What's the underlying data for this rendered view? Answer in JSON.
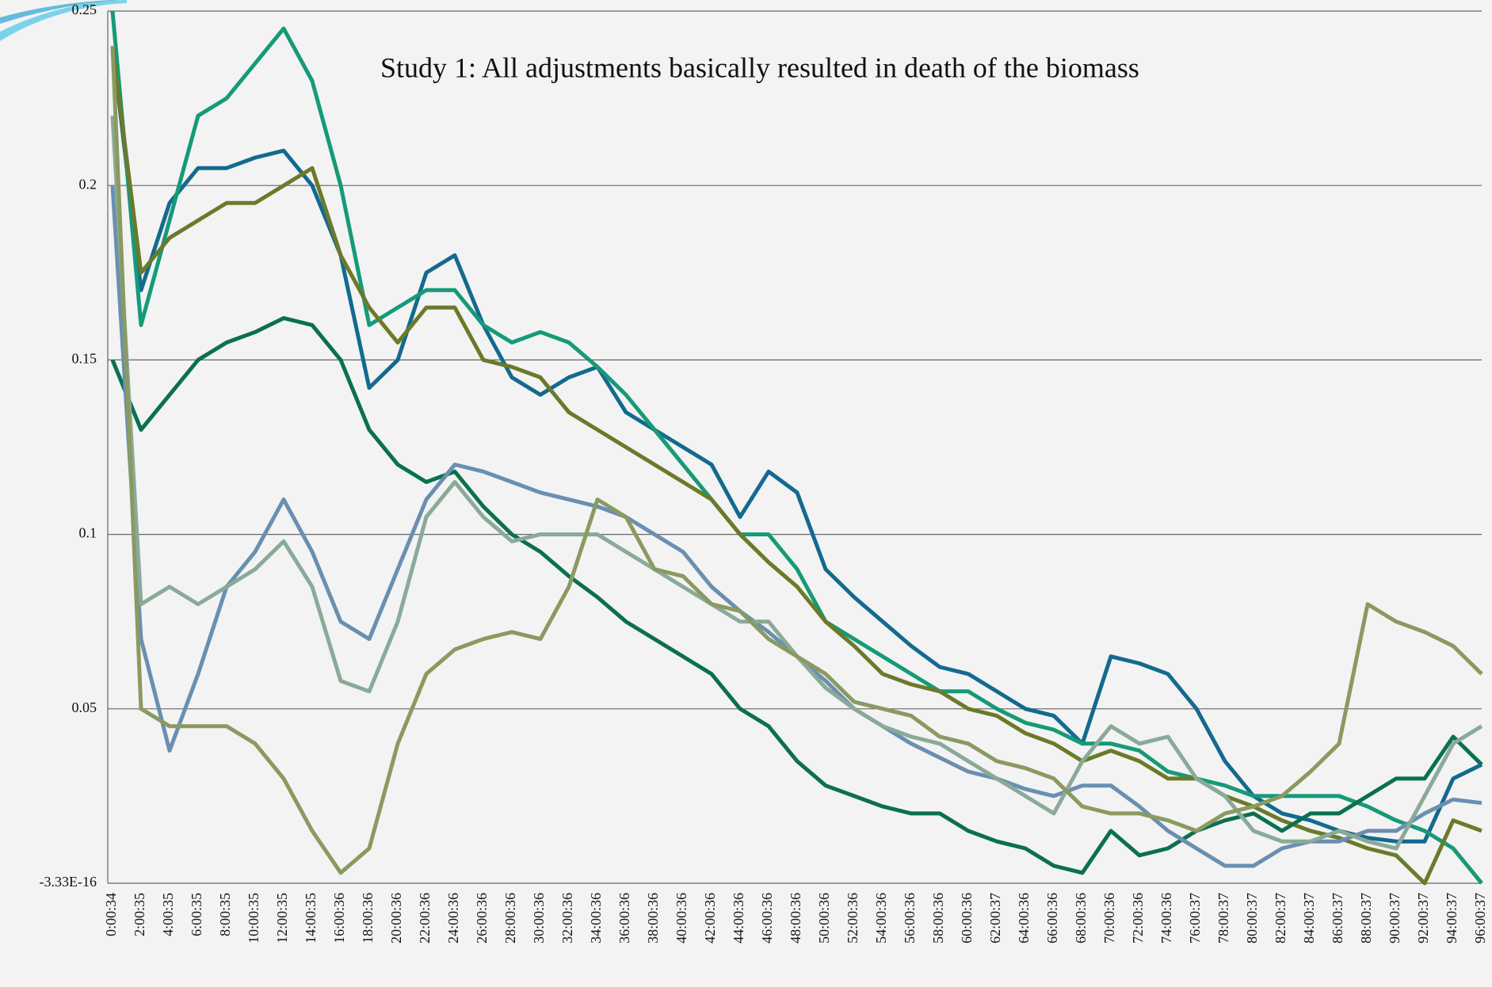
{
  "chart_data": {
    "type": "line",
    "title": "Study 1:  All adjustments basically  resulted in death of the biomass",
    "categories": [
      "0:00:34",
      "2:00:35",
      "4:00:35",
      "6:00:35",
      "8:00:35",
      "10:00:35",
      "12:00:35",
      "14:00:35",
      "16:00:36",
      "18:00:36",
      "20:00:36",
      "22:00:36",
      "24:00:36",
      "26:00:36",
      "28:00:36",
      "30:00:36",
      "32:00:36",
      "34:00:36",
      "36:00:36",
      "38:00:36",
      "40:00:36",
      "42:00:36",
      "44:00:36",
      "46:00:36",
      "48:00:36",
      "50:00:36",
      "52:00:36",
      "54:00:36",
      "56:00:36",
      "58:00:36",
      "60:00:36",
      "62:00:37",
      "64:00:36",
      "66:00:36",
      "68:00:36",
      "70:00:36",
      "72:00:36",
      "74:00:36",
      "76:00:37",
      "78:00:37",
      "80:00:37",
      "82:00:37",
      "84:00:37",
      "86:00:37",
      "88:00:37",
      "90:00:37",
      "92:00:37",
      "94:00:37",
      "96:00:37"
    ],
    "series": [
      {
        "color": "#136a8e",
        "values": [
          0.24,
          0.17,
          0.195,
          0.205,
          0.205,
          0.208,
          0.21,
          0.2,
          0.18,
          0.142,
          0.15,
          0.175,
          0.18,
          0.16,
          0.145,
          0.14,
          0.145,
          0.148,
          0.135,
          0.13,
          0.125,
          0.12,
          0.105,
          0.118,
          0.112,
          0.09,
          0.082,
          0.075,
          0.068,
          0.062,
          0.06,
          0.055,
          0.05,
          0.048,
          0.04,
          0.065,
          0.063,
          0.06,
          0.05,
          0.035,
          0.025,
          0.02,
          0.018,
          0.015,
          0.013,
          0.012,
          0.012,
          0.03,
          0.034
        ]
      },
      {
        "color": "#169a78",
        "values": [
          0.25,
          0.16,
          0.19,
          0.22,
          0.225,
          0.235,
          0.245,
          0.23,
          0.2,
          0.16,
          0.165,
          0.17,
          0.17,
          0.16,
          0.155,
          0.158,
          0.155,
          0.148,
          0.14,
          0.13,
          0.12,
          0.11,
          0.1,
          0.1,
          0.09,
          0.075,
          0.07,
          0.065,
          0.06,
          0.055,
          0.055,
          0.05,
          0.046,
          0.044,
          0.04,
          0.04,
          0.038,
          0.032,
          0.03,
          0.028,
          0.025,
          0.025,
          0.025,
          0.025,
          0.022,
          0.018,
          0.015,
          0.01,
          0.0
        ]
      },
      {
        "color": "#6b7a2a",
        "values": [
          0.24,
          0.175,
          0.185,
          0.19,
          0.195,
          0.195,
          0.2,
          0.205,
          0.18,
          0.165,
          0.155,
          0.165,
          0.165,
          0.15,
          0.148,
          0.145,
          0.135,
          0.13,
          0.125,
          0.12,
          0.115,
          0.11,
          0.1,
          0.092,
          0.085,
          0.075,
          0.068,
          0.06,
          0.057,
          0.055,
          0.05,
          0.048,
          0.043,
          0.04,
          0.035,
          0.038,
          0.035,
          0.03,
          0.03,
          0.025,
          0.022,
          0.018,
          0.015,
          0.013,
          0.01,
          0.008,
          0.0,
          0.018,
          0.015
        ]
      },
      {
        "color": "#0b7050",
        "values": [
          0.15,
          0.13,
          0.14,
          0.15,
          0.155,
          0.158,
          0.162,
          0.16,
          0.15,
          0.13,
          0.12,
          0.115,
          0.118,
          0.108,
          0.1,
          0.095,
          0.088,
          0.082,
          0.075,
          0.07,
          0.065,
          0.06,
          0.05,
          0.045,
          0.035,
          0.028,
          0.025,
          0.022,
          0.02,
          0.02,
          0.015,
          0.012,
          0.01,
          0.005,
          0.003,
          0.015,
          0.008,
          0.01,
          0.015,
          0.018,
          0.02,
          0.015,
          0.02,
          0.02,
          0.025,
          0.03,
          0.03,
          0.042,
          0.034
        ]
      },
      {
        "color": "#6a8fb0",
        "values": [
          0.2,
          0.07,
          0.038,
          0.06,
          0.085,
          0.095,
          0.11,
          0.095,
          0.075,
          0.07,
          0.09,
          0.11,
          0.12,
          0.118,
          0.115,
          0.112,
          0.11,
          0.108,
          0.105,
          0.1,
          0.095,
          0.085,
          0.078,
          0.072,
          0.065,
          0.058,
          0.05,
          0.045,
          0.04,
          0.036,
          0.032,
          0.03,
          0.027,
          0.025,
          0.028,
          0.028,
          0.022,
          0.015,
          0.01,
          0.005,
          0.005,
          0.01,
          0.012,
          0.012,
          0.015,
          0.015,
          0.02,
          0.024,
          0.023
        ]
      },
      {
        "color": "#8aaa98",
        "values": [
          0.22,
          0.08,
          0.085,
          0.08,
          0.085,
          0.09,
          0.098,
          0.085,
          0.058,
          0.055,
          0.075,
          0.105,
          0.115,
          0.105,
          0.098,
          0.1,
          0.1,
          0.1,
          0.095,
          0.09,
          0.085,
          0.08,
          0.075,
          0.075,
          0.065,
          0.056,
          0.05,
          0.045,
          0.042,
          0.04,
          0.035,
          0.03,
          0.025,
          0.02,
          0.035,
          0.045,
          0.04,
          0.042,
          0.03,
          0.025,
          0.015,
          0.012,
          0.012,
          0.015,
          0.012,
          0.01,
          0.025,
          0.04,
          0.045
        ]
      },
      {
        "color": "#8a9a60",
        "values": [
          0.24,
          0.05,
          0.045,
          0.045,
          0.045,
          0.04,
          0.03,
          0.015,
          0.003,
          0.01,
          0.04,
          0.06,
          0.067,
          0.07,
          0.072,
          0.07,
          0.085,
          0.11,
          0.105,
          0.09,
          0.088,
          0.08,
          0.078,
          0.07,
          0.065,
          0.06,
          0.052,
          0.05,
          0.048,
          0.042,
          0.04,
          0.035,
          0.033,
          0.03,
          0.022,
          0.02,
          0.02,
          0.018,
          0.015,
          0.02,
          0.022,
          0.025,
          0.032,
          0.04,
          0.08,
          0.075,
          0.072,
          0.068,
          0.06
        ]
      }
    ],
    "ylim": [
      -3.33e-16,
      0.25
    ],
    "yticks": [
      {
        "value": -3.33e-16,
        "label": "-3.33E-16"
      },
      0.05,
      0.1,
      0.15,
      0.2,
      0.25
    ],
    "grid": true
  }
}
